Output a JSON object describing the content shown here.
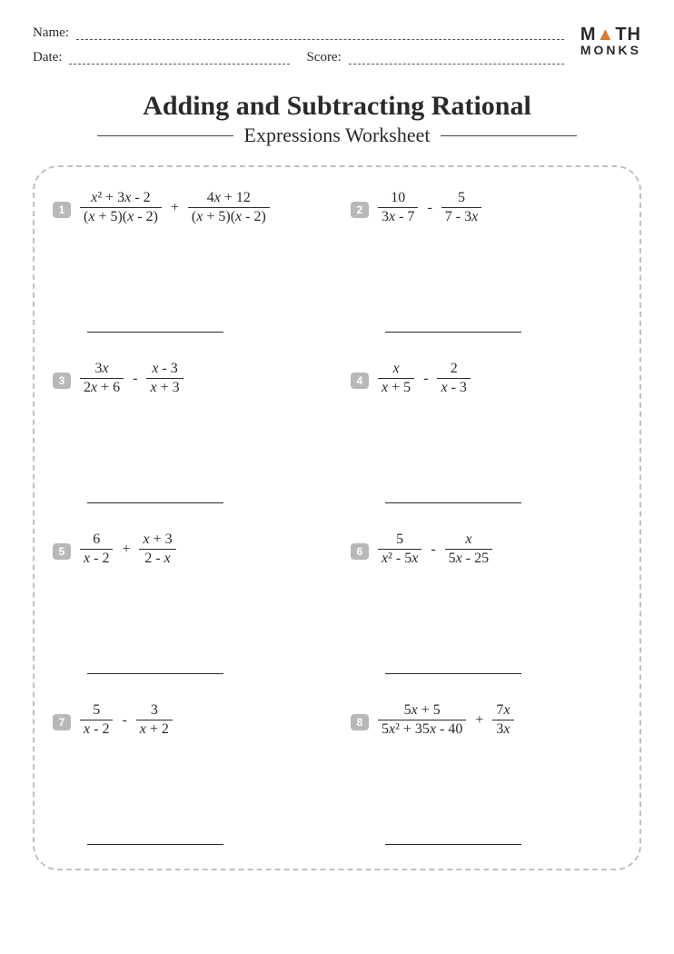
{
  "header": {
    "name_label": "Name:",
    "date_label": "Date:",
    "score_label": "Score:"
  },
  "logo": {
    "top": "M▲TH",
    "bottom": "MONKS"
  },
  "title": {
    "line1": "Adding and Subtracting Rational",
    "line2": "Expressions Worksheet"
  },
  "style": {
    "page_bg": "#ffffff",
    "text_color": "#2a2a2a",
    "badge_bg": "#b8b8b8",
    "badge_fg": "#ffffff",
    "dashed_border": "#c0c0c0",
    "logo_triangle": "#d97a2a"
  },
  "problems": [
    {
      "n": "1",
      "parts": [
        {
          "type": "frac",
          "num": "x² + 3x - 2",
          "den": "(x + 5)(x - 2)"
        },
        {
          "type": "op",
          "v": "+"
        },
        {
          "type": "frac",
          "num": "4x + 12",
          "den": "(x + 5)(x - 2)"
        }
      ]
    },
    {
      "n": "2",
      "parts": [
        {
          "type": "frac",
          "num": "10",
          "den": "3x - 7"
        },
        {
          "type": "op",
          "v": "-"
        },
        {
          "type": "frac",
          "num": "5",
          "den": "7 - 3x"
        }
      ]
    },
    {
      "n": "3",
      "parts": [
        {
          "type": "frac",
          "num": "3x",
          "den": "2x + 6"
        },
        {
          "type": "op",
          "v": "-"
        },
        {
          "type": "frac",
          "num": "x - 3",
          "den": "x + 3"
        }
      ]
    },
    {
      "n": "4",
      "parts": [
        {
          "type": "frac",
          "num": "x",
          "den": "x + 5"
        },
        {
          "type": "op",
          "v": "-"
        },
        {
          "type": "frac",
          "num": "2",
          "den": "x - 3"
        }
      ]
    },
    {
      "n": "5",
      "parts": [
        {
          "type": "frac",
          "num": "6",
          "den": "x - 2"
        },
        {
          "type": "op",
          "v": "+"
        },
        {
          "type": "frac",
          "num": "x + 3",
          "den": "2 - x"
        }
      ]
    },
    {
      "n": "6",
      "parts": [
        {
          "type": "frac",
          "num": "5",
          "den": "x² - 5x"
        },
        {
          "type": "op",
          "v": "-"
        },
        {
          "type": "frac",
          "num": "x",
          "den": "5x - 25"
        }
      ]
    },
    {
      "n": "7",
      "parts": [
        {
          "type": "frac",
          "num": "5",
          "den": "x - 2"
        },
        {
          "type": "op",
          "v": "-"
        },
        {
          "type": "frac",
          "num": "3",
          "den": "x + 2"
        }
      ]
    },
    {
      "n": "8",
      "parts": [
        {
          "type": "frac",
          "num": "5x + 5",
          "den": "5x² + 35x - 40"
        },
        {
          "type": "op",
          "v": "+"
        },
        {
          "type": "frac",
          "num": "7x",
          "den": "3x"
        }
      ]
    }
  ]
}
